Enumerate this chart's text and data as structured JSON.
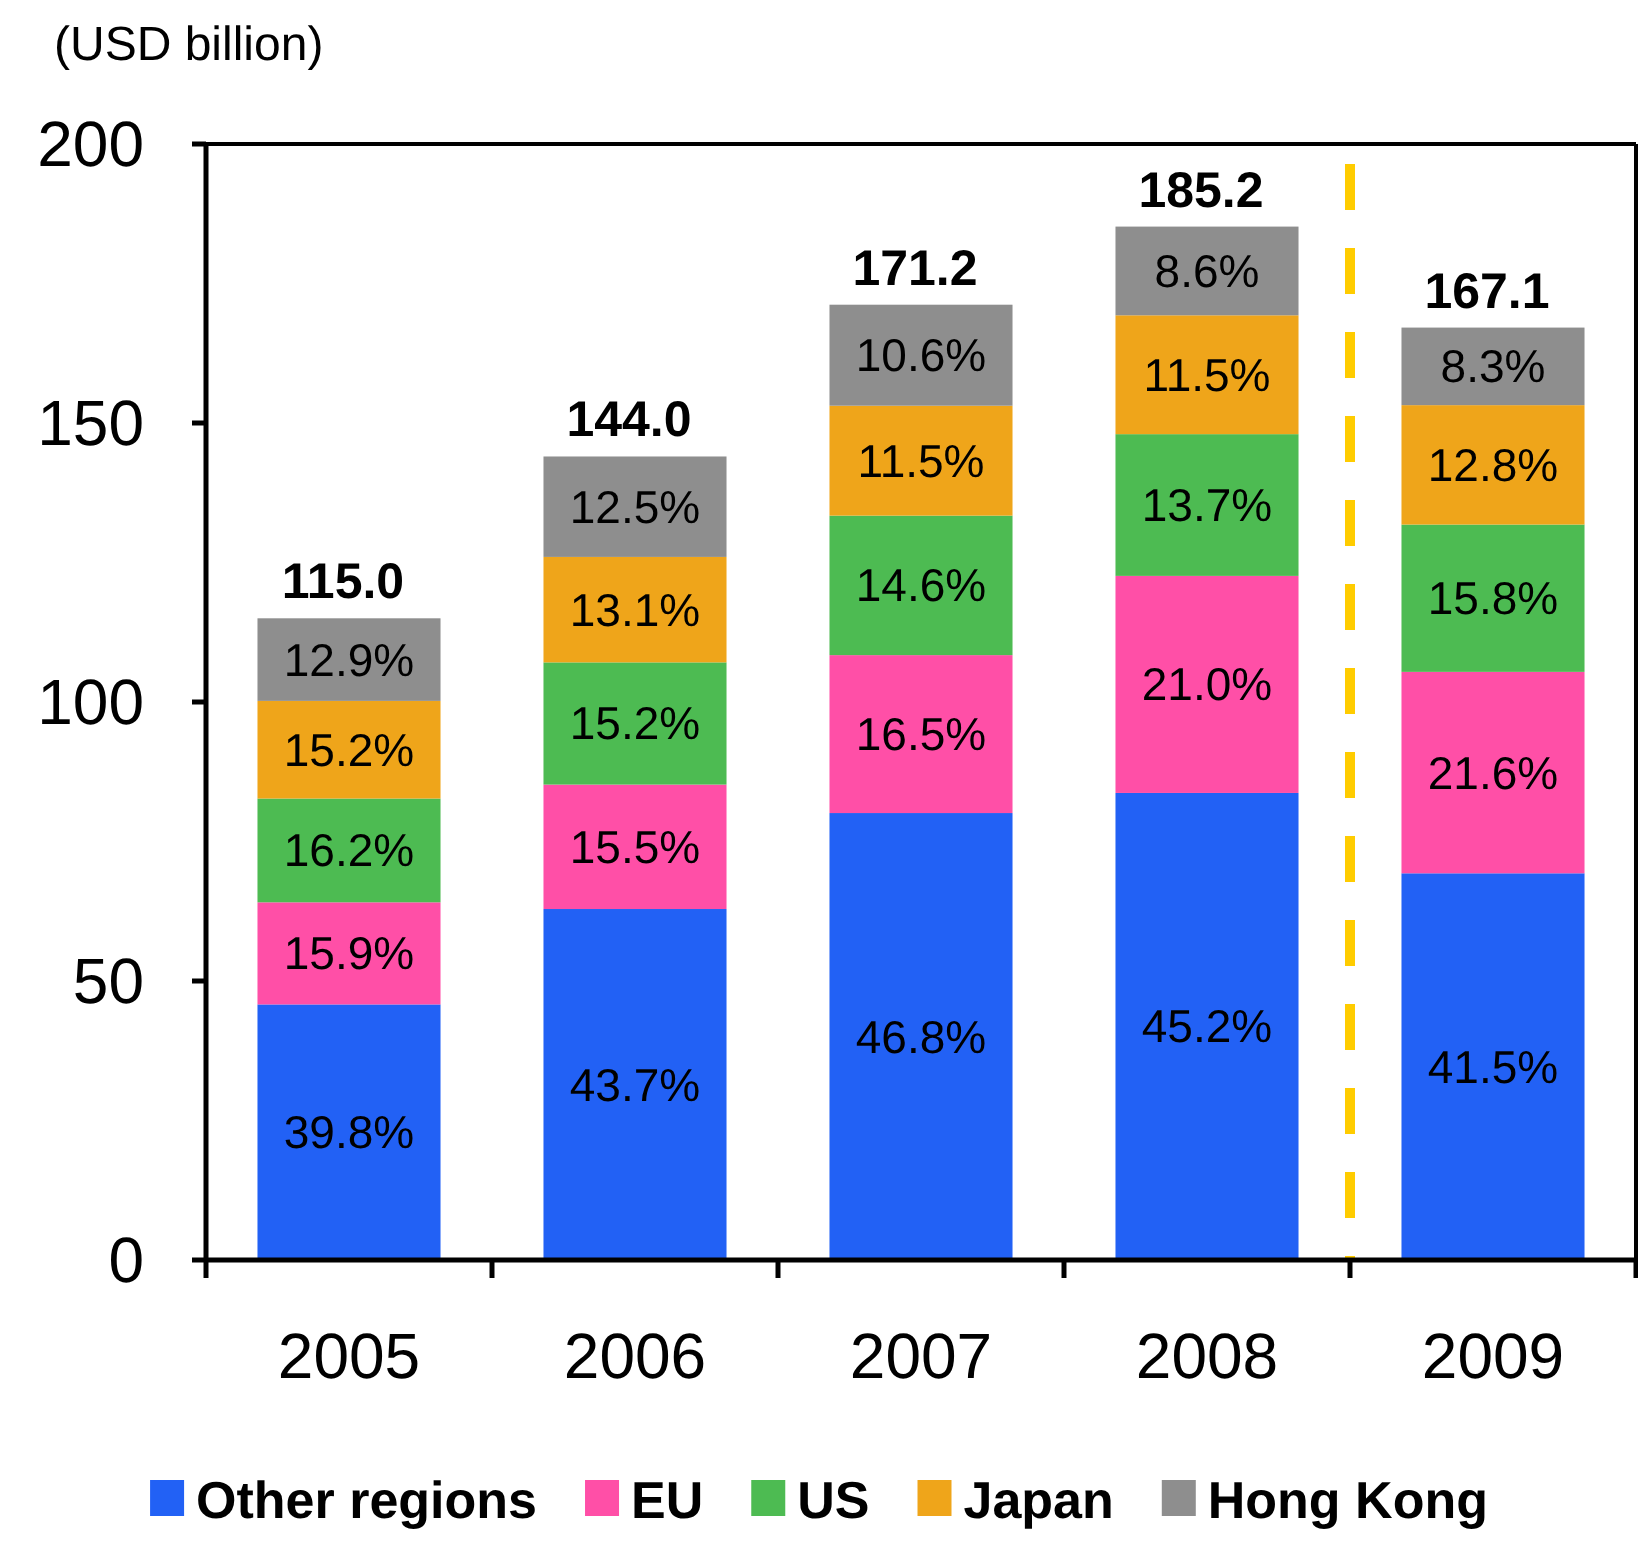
{
  "chart_data": {
    "type": "bar",
    "stacked": true,
    "ylabel": "(USD billion)",
    "categories": [
      "2005",
      "2006",
      "2007",
      "2008",
      "2009"
    ],
    "series": [
      {
        "name": "Other regions",
        "color": "#2261f5",
        "values": [
          45.8,
          62.9,
          80.1,
          83.7,
          69.3
        ]
      },
      {
        "name": "EU",
        "color": "#ff4fa7",
        "values": [
          18.3,
          22.3,
          28.3,
          38.9,
          36.1
        ]
      },
      {
        "name": "US",
        "color": "#4dbb52",
        "values": [
          18.6,
          21.9,
          25.0,
          25.4,
          26.4
        ]
      },
      {
        "name": "Japan",
        "color": "#efa51a",
        "values": [
          17.5,
          18.9,
          19.7,
          21.3,
          21.4
        ]
      },
      {
        "name": "Hong Kong",
        "color": "#8e8e8e",
        "values": [
          14.8,
          18.0,
          18.1,
          15.9,
          13.9
        ]
      }
    ],
    "totals": [
      "115.0",
      "144.0",
      "171.2",
      "185.2",
      "167.1"
    ],
    "annotations": [
      "39.8%",
      "15.9%",
      "16.2%",
      "15.2%",
      "12.9%",
      "43.7%",
      "15.5%",
      "15.2%",
      "13.1%",
      "12.5%",
      "46.8%",
      "16.5%",
      "14.6%",
      "11.5%",
      "10.6%",
      "45.2%",
      "21.0%",
      "13.7%",
      "11.5%",
      "8.6%",
      "41.5%",
      "21.6%",
      "15.8%",
      "12.8%",
      "8.3%"
    ],
    "ylim": [
      0,
      200
    ],
    "yticks": [
      0,
      50,
      100,
      150,
      200
    ],
    "legend": "bottom"
  }
}
